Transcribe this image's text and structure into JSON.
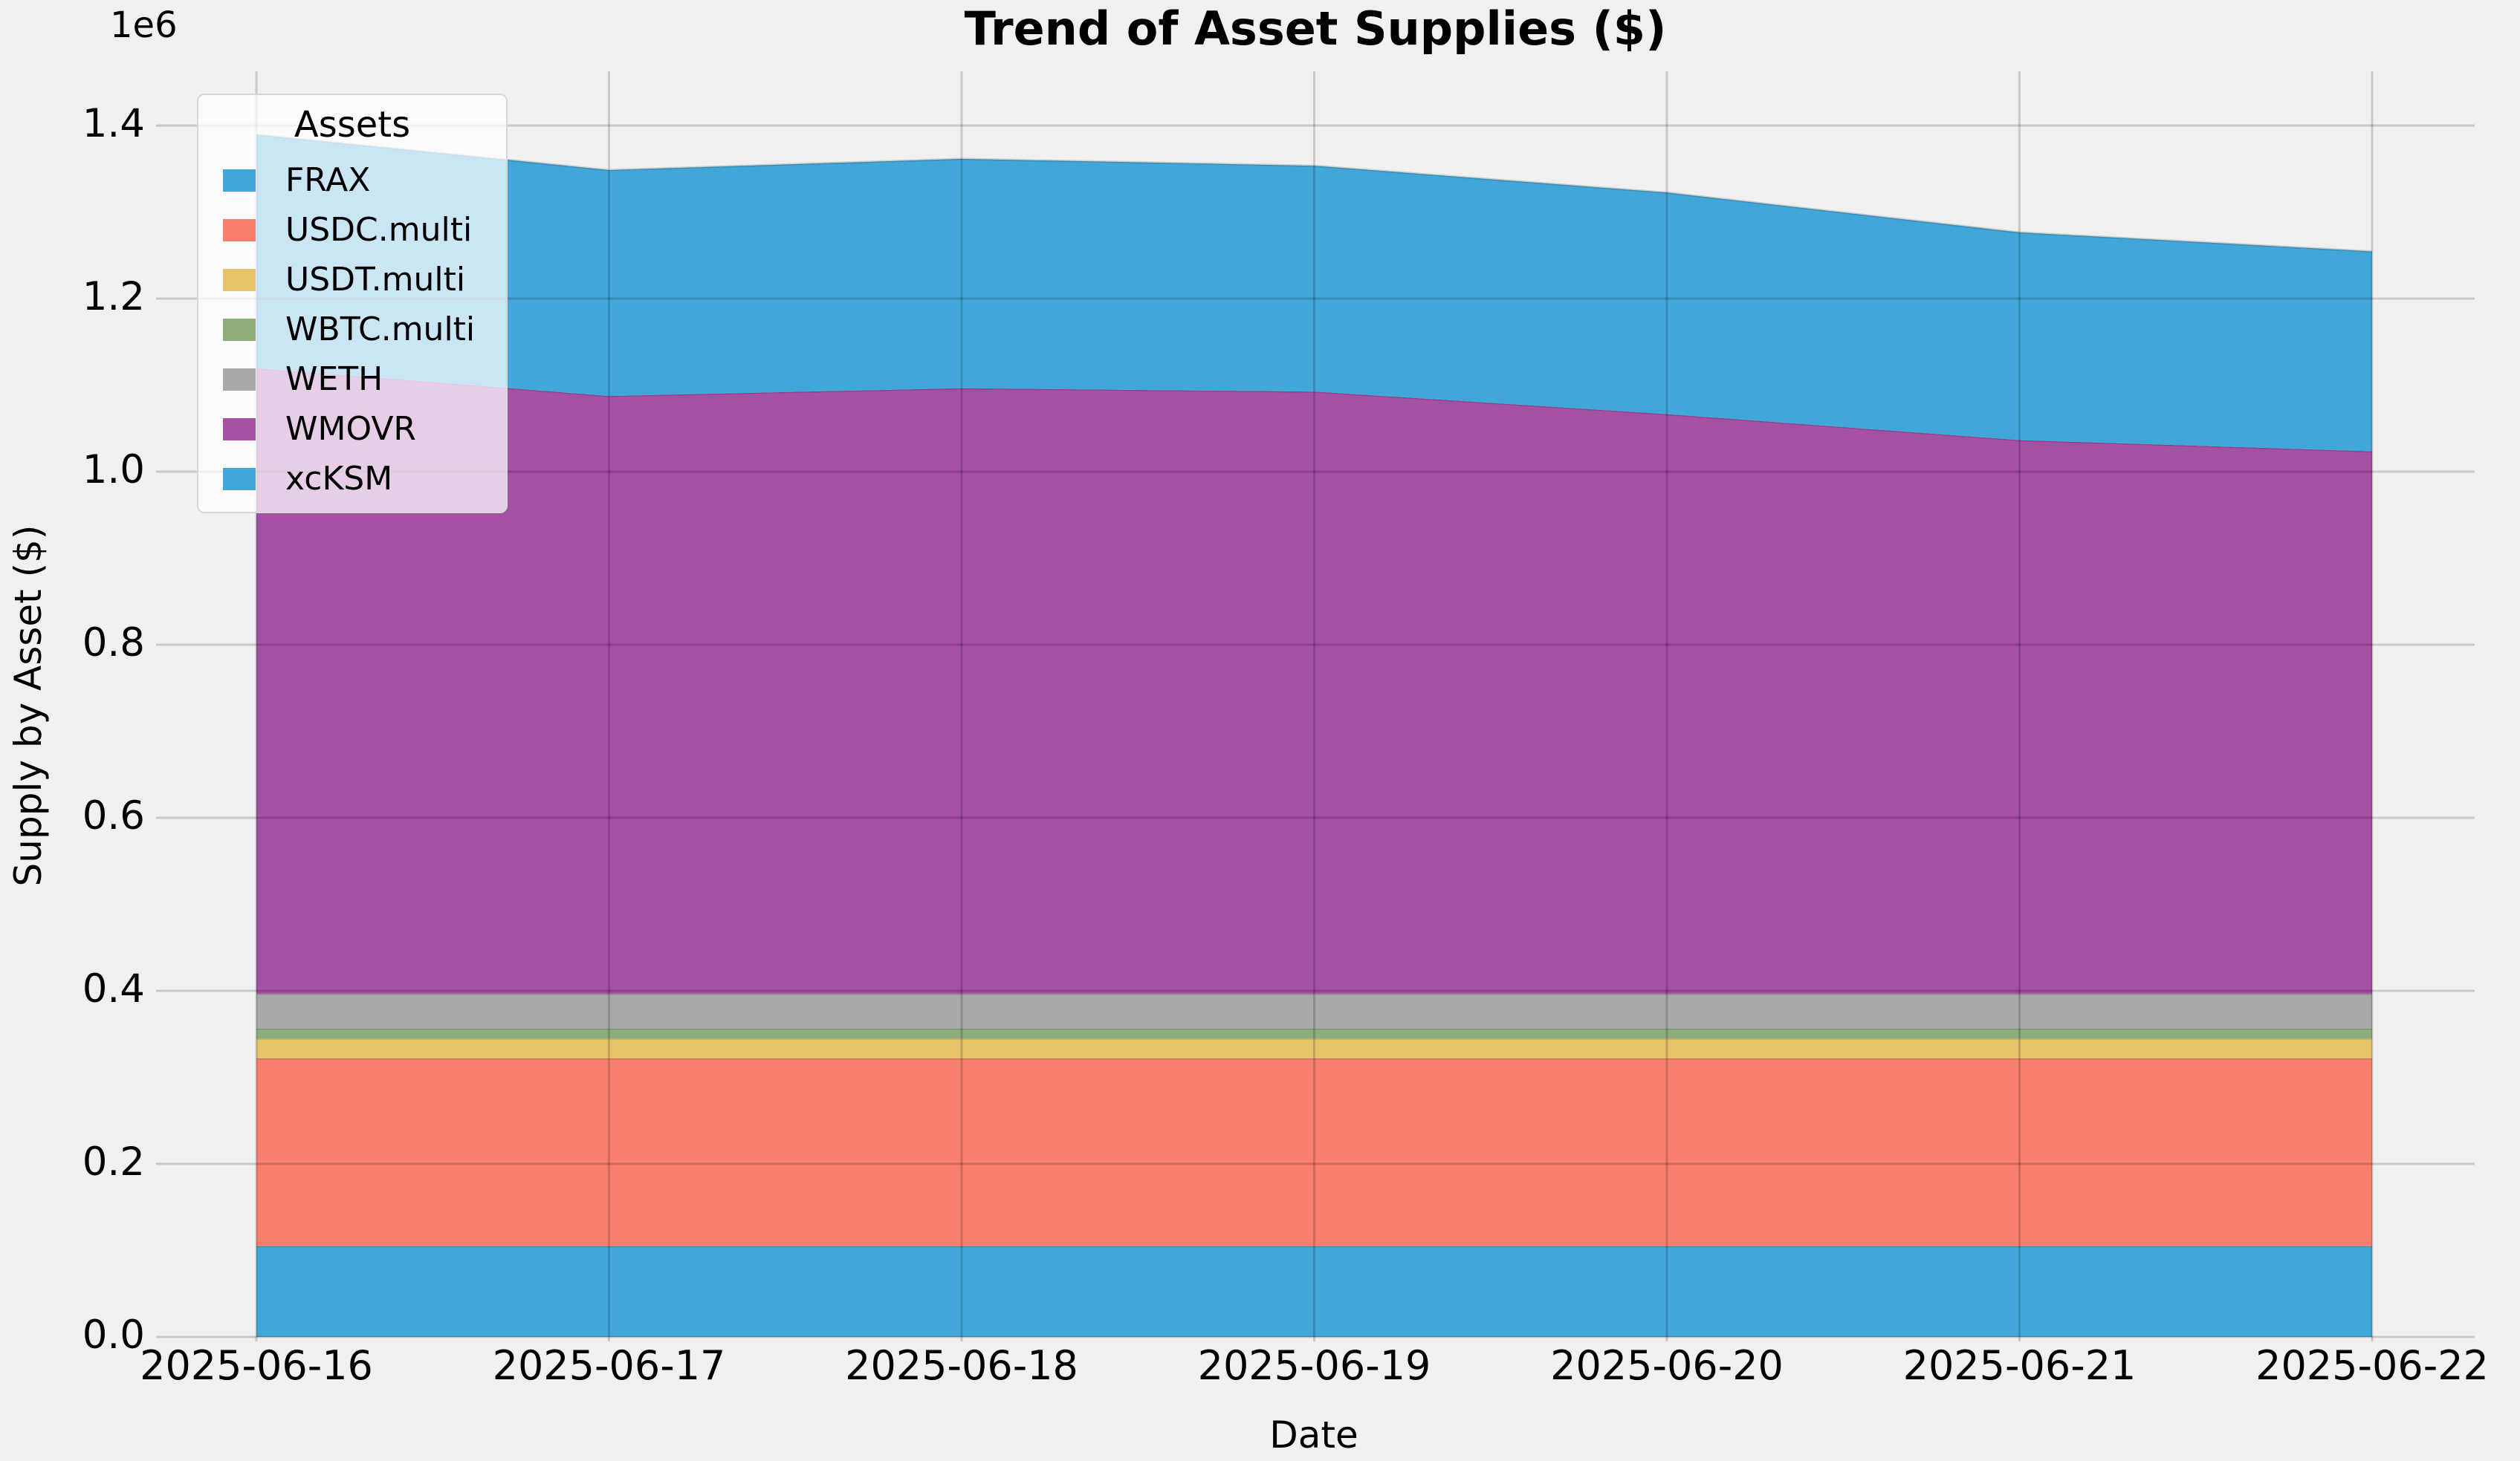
{
  "colors": {
    "background": "#f0f0f0",
    "grid": "rgba(0,0,0,0.16)",
    "text": "#000000",
    "legend_background": "rgba(255,255,255,0.72)"
  },
  "chart_data": {
    "type": "area",
    "stacked": true,
    "title": "Trend of Asset Supplies ($)",
    "xlabel": "Date",
    "ylabel": "Supply by Asset ($)",
    "y_offset_label": "1e6",
    "legend_title": "Assets",
    "legend_position": "upper-left",
    "grid": true,
    "x": [
      "2025-06-16",
      "2025-06-17",
      "2025-06-18",
      "2025-06-19",
      "2025-06-20",
      "2025-06-21",
      "2025-06-22"
    ],
    "ylim": [
      0,
      1459000
    ],
    "yticks": [
      0,
      200000,
      400000,
      600000,
      800000,
      1000000,
      1200000,
      1400000
    ],
    "ytick_labels": [
      "0.0",
      "0.2",
      "0.4",
      "0.6",
      "0.8",
      "1.0",
      "1.2",
      "1.4"
    ],
    "series": [
      {
        "name": "FRAX",
        "color": "#41a7d9",
        "values": [
          105000,
          105000,
          105000,
          105000,
          105000,
          105000,
          105000
        ]
      },
      {
        "name": "USDC.multi",
        "color": "#f87f6d",
        "values": [
          217000,
          217000,
          217000,
          217000,
          217000,
          217000,
          217000
        ]
      },
      {
        "name": "USDT.multi",
        "color": "#e4c369",
        "values": [
          23000,
          23000,
          23000,
          23000,
          23000,
          23000,
          23000
        ]
      },
      {
        "name": "WBTC.multi",
        "color": "#8fac7b",
        "values": [
          11500,
          11500,
          11500,
          11500,
          11500,
          11500,
          11500
        ]
      },
      {
        "name": "WETH",
        "color": "#a9a9a9",
        "values": [
          40000,
          40000,
          40000,
          40000,
          40000,
          40000,
          40000
        ]
      },
      {
        "name": "WMOVR",
        "color": "#a450a5",
        "values": [
          723000,
          691000,
          700000,
          696000,
          670000,
          640000,
          627000
        ]
      },
      {
        "name": "xcKSM",
        "color": "#41a7d9",
        "values": [
          270000,
          261000,
          265000,
          261000,
          256000,
          240000,
          231000
        ]
      }
    ]
  }
}
